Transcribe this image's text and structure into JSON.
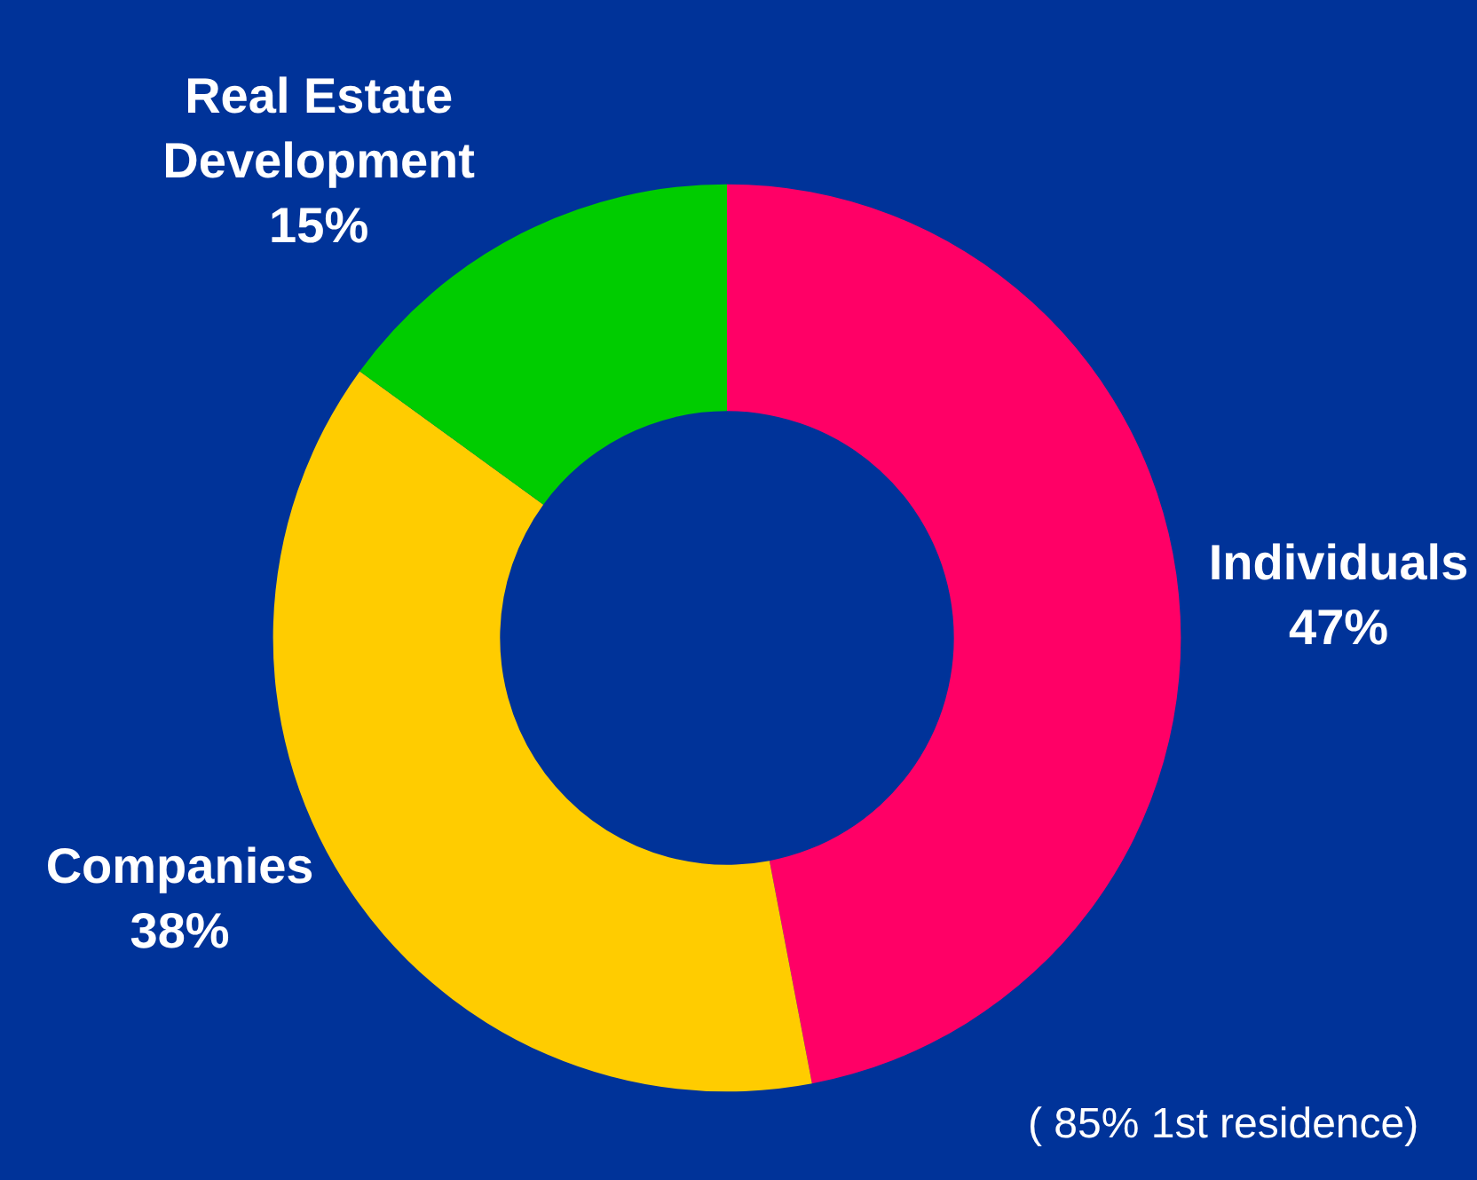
{
  "chart_data": {
    "type": "donut",
    "categories": [
      "Individuals",
      "Companies",
      "Real Estate Development"
    ],
    "values": [
      47,
      38,
      15
    ],
    "colors": [
      "#ff0066",
      "#ffcc00",
      "#00cc00"
    ],
    "value_labels": [
      "47%",
      "38%",
      "15%"
    ],
    "legend": false,
    "annotations": [
      "( 85% 1st residence)"
    ]
  }
}
